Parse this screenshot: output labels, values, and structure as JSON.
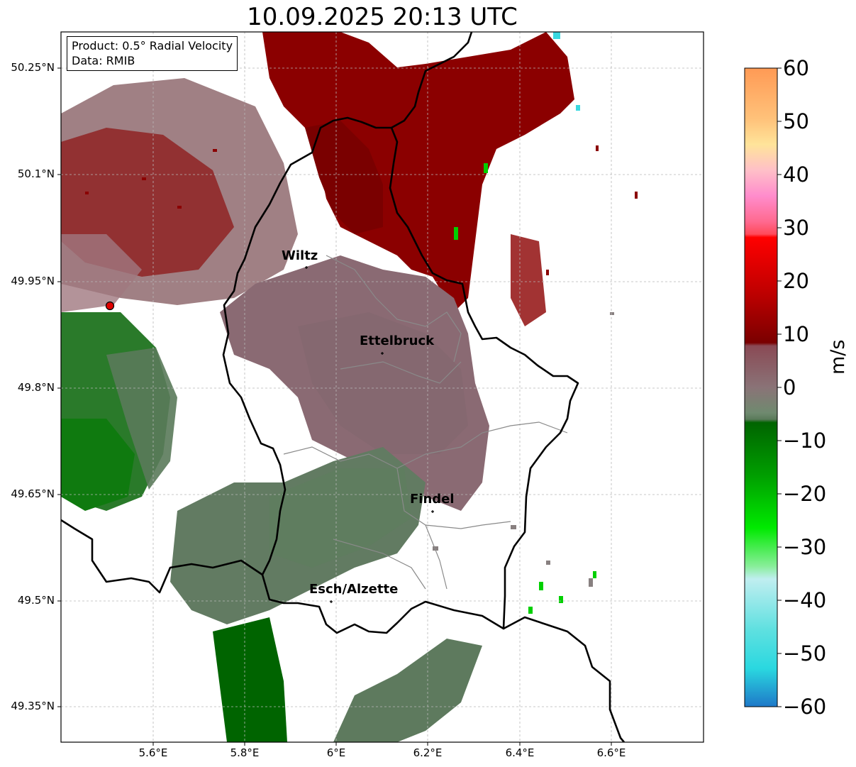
{
  "title": "10.09.2025 20:13 UTC",
  "infobox": {
    "product": "Product: 0.5° Radial Velocity",
    "source": "Data: RMIB"
  },
  "axes": {
    "y_ticks": [
      "50.25°N",
      "50.1°N",
      "49.95°N",
      "49.8°N",
      "49.65°N",
      "49.5°N",
      "49.35°N"
    ],
    "x_ticks": [
      "5.6°E",
      "5.8°E",
      "6°E",
      "6.2°E",
      "6.4°E",
      "6.6°E"
    ]
  },
  "cities": [
    {
      "name": "Wiltz"
    },
    {
      "name": "Ettelbruck"
    },
    {
      "name": "Findel"
    },
    {
      "name": "Esch/Alzette"
    }
  ],
  "colorbar": {
    "unit": "m/s",
    "ticks": [
      "60",
      "50",
      "40",
      "30",
      "20",
      "10",
      "0",
      "−10",
      "−20",
      "−30",
      "−40",
      "−50",
      "−60"
    ]
  },
  "colors": {
    "outbound_strong": "#8b0000",
    "outbound_weak": "#8a6a72",
    "near_zero": "#7f7f7f",
    "inbound_weak": "#5e7d5e",
    "inbound_strong": "#006400",
    "radar_site": "#e00000"
  }
}
